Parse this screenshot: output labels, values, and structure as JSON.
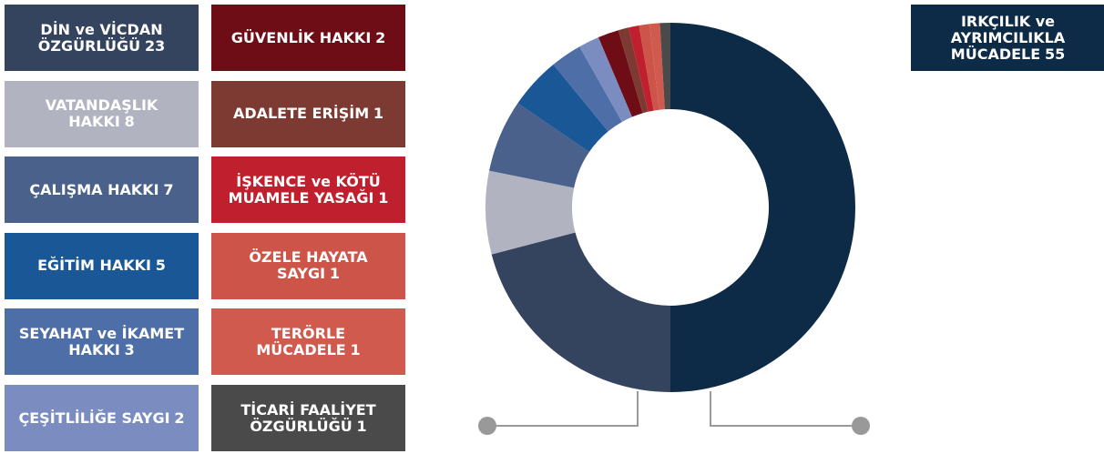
{
  "chart_data": {
    "type": "pie",
    "categories": [
      "IRKÇILIK ve AYRIMCILIKLA MÜCADELE",
      "DİN ve VİCDAN ÖZGÜRLÜĞÜ",
      "VATANDAŞLIK HAKKI",
      "ÇALIŞMA HAKKI",
      "EĞİTİM HAKKI",
      "SEYAHAT ve İKAMET HAKKI",
      "ÇEŞİTLİLİĞE SAYGI",
      "GÜVENLİK HAKKI",
      "ADALETE ERİŞİM",
      "İŞKENCE ve KÖTÜ MUAMELE YASAĞI",
      "ÖZELE HAYATA SAYGI",
      "TERÖRLE MÜCADELE",
      "TİCARİ FAALİYET ÖZGÜRLÜĞÜ"
    ],
    "values": [
      55,
      23,
      8,
      7,
      5,
      3,
      2,
      2,
      1,
      1,
      1,
      1,
      1
    ],
    "colors": [
      "#0d2a47",
      "#34435e",
      "#b1b4c0",
      "#4a618b",
      "#1a5796",
      "#4e6ea8",
      "#7b8dc0",
      "#6e0d16",
      "#7d3a33",
      "#c0202e",
      "#cc5448",
      "#d05a4d",
      "#4a4a4a"
    ]
  }
}
